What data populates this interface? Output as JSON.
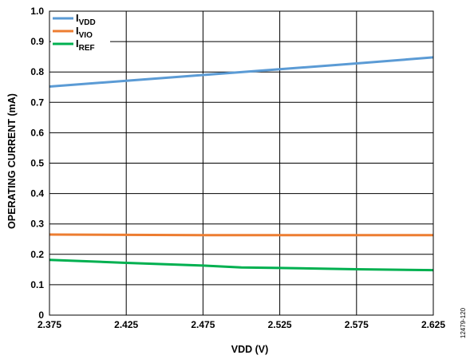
{
  "chart_data": {
    "type": "line",
    "xlabel": "VDD (V)",
    "ylabel": "OPERATING CURRENT (mA)",
    "xlim": [
      2.375,
      2.625
    ],
    "ylim": [
      0,
      1.0
    ],
    "x_ticks": [
      "2.375",
      "2.425",
      "2.475",
      "2.525",
      "2.575",
      "2.625"
    ],
    "y_ticks": [
      "0",
      "0.1",
      "0.2",
      "0.3",
      "0.4",
      "0.5",
      "0.6",
      "0.7",
      "0.8",
      "0.9",
      "1.0"
    ],
    "grid": true,
    "legend_position": "top-left",
    "series": [
      {
        "name": "I",
        "sub": "VDD",
        "color": "#5b9bd5",
        "x": [
          2.375,
          2.425,
          2.475,
          2.525,
          2.575,
          2.625
        ],
        "y": [
          0.752,
          0.771,
          0.79,
          0.809,
          0.828,
          0.848
        ]
      },
      {
        "name": "I",
        "sub": "VIO",
        "color": "#ed7d31",
        "x": [
          2.375,
          2.425,
          2.475,
          2.525,
          2.575,
          2.625
        ],
        "y": [
          0.265,
          0.264,
          0.263,
          0.263,
          0.263,
          0.263
        ]
      },
      {
        "name": "I",
        "sub": "REF",
        "color": "#00b050",
        "x": [
          2.375,
          2.425,
          2.475,
          2.5,
          2.525,
          2.575,
          2.625
        ],
        "y": [
          0.182,
          0.172,
          0.163,
          0.157,
          0.155,
          0.151,
          0.148
        ]
      }
    ]
  },
  "figure_id": "12479-120"
}
